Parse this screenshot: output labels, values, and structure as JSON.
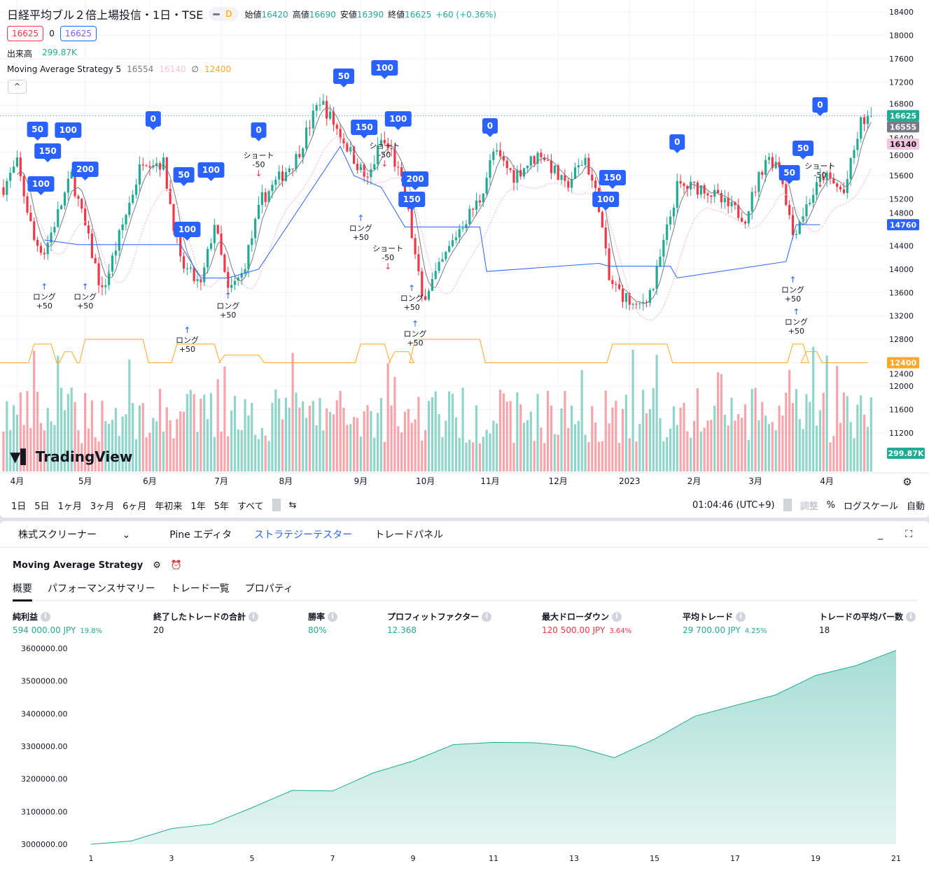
{
  "header": {
    "title": "日経平均ブル２倍上場投信・1日・TSE",
    "interval_badge": "D",
    "open_label": "始値",
    "open": "16420",
    "high_label": "高値",
    "high": "16690",
    "low_label": "安値",
    "low": "16390",
    "close_label": "終値",
    "close": "16625",
    "change": "+60 (+0.36%)",
    "sell_price": "16625",
    "spread": "0",
    "buy_price": "16625",
    "volume_label": "出来高",
    "volume_value": "299.87K",
    "indicator_name": "Moving Average Strategy 5",
    "ind_v1": "16554",
    "ind_v2": "16140",
    "ind_v3": "12400",
    "logo_text": "TradingView"
  },
  "colors": {
    "up": "#22ab94",
    "down": "#f23645",
    "accent": "#2962ff",
    "ma_fast": "#787b86",
    "ma_slow": "#f7c4dc",
    "position": "#ffa726"
  },
  "price_axis": {
    "ticks": [
      "18400",
      "18000",
      "17600",
      "17200",
      "16800",
      "16400",
      "16000",
      "15600",
      "15200",
      "14800",
      "14400",
      "14000",
      "13600",
      "13200",
      "12800",
      "12400",
      "12000",
      "11600",
      "11200"
    ],
    "badges": [
      {
        "text": "16625",
        "price": 16625,
        "color": "#22ab94"
      },
      {
        "text": "16555",
        "price": 16555,
        "color": "#787b86"
      },
      {
        "text": "16140",
        "price": 16140,
        "color": "#f7c4dc"
      },
      {
        "text": "14760",
        "price": 14760,
        "color": "#2962ff"
      },
      {
        "text": "12400",
        "price": 12400,
        "color": "#ffa726"
      }
    ],
    "volume_badge": "299.87K"
  },
  "time_axis": [
    {
      "label": "4月",
      "bar": 4
    },
    {
      "label": "5月",
      "bar": 24
    },
    {
      "label": "6月",
      "bar": 43
    },
    {
      "label": "7月",
      "bar": 64
    },
    {
      "label": "8月",
      "bar": 83
    },
    {
      "label": "9月",
      "bar": 105
    },
    {
      "label": "10月",
      "bar": 124
    },
    {
      "label": "11月",
      "bar": 143
    },
    {
      "label": "12月",
      "bar": 163
    },
    {
      "label": "2023",
      "bar": 184
    },
    {
      "label": "2月",
      "bar": 203
    },
    {
      "label": "3月",
      "bar": 221
    },
    {
      "label": "4月",
      "bar": 242
    }
  ],
  "price_path": [
    [
      0,
      15400
    ],
    [
      4,
      15800
    ],
    [
      9,
      14500
    ],
    [
      12,
      14300
    ],
    [
      20,
      15600
    ],
    [
      29,
      13600
    ],
    [
      41,
      15900
    ],
    [
      47,
      15800
    ],
    [
      52,
      14100
    ],
    [
      58,
      13700
    ],
    [
      62,
      14800
    ],
    [
      66,
      13600
    ],
    [
      70,
      13900
    ],
    [
      76,
      15200
    ],
    [
      86,
      15900
    ],
    [
      93,
      16900
    ],
    [
      97,
      16500
    ],
    [
      103,
      15900
    ],
    [
      107,
      15500
    ],
    [
      111,
      16200
    ],
    [
      114,
      16000
    ],
    [
      118,
      15300
    ],
    [
      123,
      13500
    ],
    [
      128,
      14000
    ],
    [
      134,
      14700
    ],
    [
      140,
      15200
    ],
    [
      144,
      16000
    ],
    [
      150,
      15600
    ],
    [
      158,
      16000
    ],
    [
      165,
      15400
    ],
    [
      171,
      15900
    ],
    [
      175,
      15100
    ],
    [
      178,
      13800
    ],
    [
      183,
      13500
    ],
    [
      186,
      13300
    ],
    [
      191,
      13700
    ],
    [
      198,
      15400
    ],
    [
      206,
      15400
    ],
    [
      212,
      15100
    ],
    [
      218,
      14900
    ],
    [
      224,
      15900
    ],
    [
      228,
      15800
    ],
    [
      232,
      14600
    ],
    [
      237,
      15200
    ],
    [
      241,
      15600
    ],
    [
      247,
      15300
    ],
    [
      252,
      16500
    ],
    [
      255,
      16625
    ]
  ],
  "strategy_line": [
    [
      12,
      14500
    ],
    [
      22,
      14420
    ],
    [
      52,
      14420
    ],
    [
      58,
      13850
    ],
    [
      66,
      13850
    ],
    [
      75,
      14000
    ],
    [
      99,
      16100
    ],
    [
      103,
      15600
    ],
    [
      111,
      15400
    ],
    [
      118,
      14720
    ],
    [
      140,
      14720
    ],
    [
      142,
      13960
    ],
    [
      175,
      14100
    ],
    [
      178,
      14050
    ],
    [
      196,
      14050
    ],
    [
      198,
      13850
    ],
    [
      230,
      14130
    ],
    [
      233,
      14760
    ],
    [
      240,
      14760
    ]
  ],
  "position_line": {
    "base": 12400,
    "segments": [
      [
        9,
        14,
        12720
      ],
      [
        18,
        20,
        12590
      ],
      [
        24,
        41,
        12800
      ],
      [
        51,
        62,
        12720
      ],
      [
        65,
        75,
        12530
      ],
      [
        105,
        112,
        12720
      ],
      [
        115,
        119,
        12590
      ],
      [
        121,
        140,
        12800
      ],
      [
        179,
        195,
        12720
      ],
      [
        232,
        235,
        12720
      ],
      [
        236,
        239,
        12590
      ]
    ]
  },
  "markers": [
    {
      "bar": 100,
      "price": 17300,
      "text": "50",
      "type": "box"
    },
    {
      "bar": 112,
      "price": 17443,
      "text": "100",
      "type": "box"
    },
    {
      "bar": 44,
      "price": 16570,
      "text": "0",
      "type": "box"
    },
    {
      "bar": 75,
      "price": 16378,
      "text": "0",
      "type": "box"
    },
    {
      "bar": 13,
      "price": 16020,
      "text": "150",
      "type": "box"
    },
    {
      "bar": 19,
      "price": 15984,
      "text": "100",
      "type": "box"
    },
    {
      "bar": 10,
      "price": 15816,
      "text": "50",
      "type": "box"
    },
    {
      "bar": 24,
      "price": 15709,
      "text": "200",
      "type": "box"
    },
    {
      "bar": 11,
      "price": 15458,
      "text": "100",
      "type": "box"
    },
    {
      "bar": 53,
      "price": 15613,
      "text": "50",
      "type": "box"
    },
    {
      "bar": 61,
      "price": 15697,
      "text": "100",
      "type": "box"
    },
    {
      "bar": 54,
      "price": 14680,
      "text": "100",
      "type": "box"
    },
    {
      "bar": 106,
      "price": 16426,
      "text": "150",
      "type": "box"
    },
    {
      "bar": 116,
      "price": 16570,
      "text": "100",
      "type": "box"
    },
    {
      "bar": 120,
      "price": 15194,
      "text": "150",
      "type": "box"
    },
    {
      "bar": 121,
      "price": 15039,
      "text": "200",
      "type": "box"
    },
    {
      "bar": 143,
      "price": 16450,
      "text": "0",
      "type": "box"
    },
    {
      "bar": 177,
      "price": 15194,
      "text": "100",
      "type": "box"
    },
    {
      "bar": 179,
      "price": 15027,
      "text": "150",
      "type": "box"
    },
    {
      "bar": 198,
      "price": 16175,
      "text": "0",
      "type": "box"
    },
    {
      "bar": 240,
      "price": 16809,
      "text": "0",
      "type": "box"
    },
    {
      "bar": 235,
      "price": 16068,
      "text": "50",
      "type": "box"
    },
    {
      "bar": 231,
      "price": 15649,
      "text": "50",
      "type": "box"
    },
    {
      "bar": 12,
      "price": 13484,
      "text": "ロング",
      "sub": "+50",
      "type": "long"
    },
    {
      "bar": 24,
      "price": 13484,
      "text": "ロング",
      "sub": "+50",
      "type": "long"
    },
    {
      "bar": 66,
      "price": 13328,
      "text": "ロング",
      "sub": "+50",
      "type": "long"
    },
    {
      "bar": 54,
      "price": 12742,
      "text": "ロング",
      "sub": "+50",
      "type": "long"
    },
    {
      "bar": 121,
      "price": 12850,
      "text": "ロング",
      "sub": "+50",
      "type": "long"
    },
    {
      "bar": 232,
      "price": 13603,
      "text": "ロング",
      "sub": "+50",
      "type": "long"
    },
    {
      "bar": 120,
      "price": 13460,
      "text": "ロング",
      "sub": "+50",
      "type": "long"
    },
    {
      "bar": 233,
      "price": 14058,
      "text": "ロング",
      "sub": "+50",
      "type": "long"
    },
    {
      "bar": 105,
      "price": 14656,
      "text": "ロング",
      "sub": "+50",
      "type": "long"
    },
    {
      "bar": 75,
      "price": 15900,
      "text": "ショート",
      "sub": "-50",
      "type": "short"
    },
    {
      "bar": 112,
      "price": 16965,
      "text": "ショート",
      "sub": "-50",
      "type": "short"
    },
    {
      "bar": 240,
      "price": 16331,
      "text": "ショート",
      "sub": "-50",
      "type": "short"
    },
    {
      "bar": 113,
      "price": 16210,
      "text": "ショート",
      "sub": "-50",
      "type": "short"
    }
  ],
  "toolbar": {
    "ranges": [
      "1日",
      "5日",
      "1ヶ月",
      "3ヶ月",
      "6ヶ月",
      "年初来",
      "1年",
      "5年",
      "すべて"
    ],
    "time": "01:04:46 (UTC+9)",
    "adjust": "調整",
    "percent": "%",
    "log": "ログスケール",
    "auto": "自動"
  },
  "panel": {
    "tabs": [
      "株式スクリーナー",
      "Pine エディタ",
      "ストラテジーテスター",
      "トレードパネル"
    ],
    "active_tab": 2,
    "strategy_name": "Moving Average Strategy",
    "subtabs": [
      "概要",
      "パフォーマンスサマリー",
      "トレード一覧",
      "プロパティ"
    ],
    "stats": [
      {
        "label": "純利益",
        "value": "594 000.00 JPY",
        "pct": "19.8%",
        "color": "green"
      },
      {
        "label": "終了したトレードの合計",
        "value": "20",
        "color": "none"
      },
      {
        "label": "勝率",
        "value": "80%",
        "color": "green"
      },
      {
        "label": "プロフィットファクター",
        "value": "12.368",
        "color": "green"
      },
      {
        "label": "最大ドローダウン",
        "value": "120 500.00 JPY",
        "pct": "3.64%",
        "color": "red"
      },
      {
        "label": "平均トレード",
        "value": "29 700.00 JPY",
        "pct": "4.25%",
        "color": "green"
      },
      {
        "label": "トレードの平均バー数",
        "value": "18",
        "color": "none"
      }
    ]
  },
  "chart_data": {
    "type": "area",
    "x": [
      1,
      2,
      3,
      4,
      5,
      6,
      7,
      8,
      9,
      10,
      11,
      12,
      13,
      14,
      15,
      16,
      17,
      18,
      19,
      20,
      21
    ],
    "values": [
      3000000,
      3010000,
      3048000,
      3062000,
      3112000,
      3165000,
      3163000,
      3218000,
      3255000,
      3305000,
      3312000,
      3311000,
      3300000,
      3265000,
      3322000,
      3392000,
      3425000,
      3457000,
      3517000,
      3547000,
      3594000
    ],
    "ylim": [
      3000000,
      3600000
    ],
    "yticks": [
      "3600000.00",
      "3500000.00",
      "3400000.00",
      "3300000.00",
      "3200000.00",
      "3100000.00",
      "3000000.00"
    ],
    "xticks": [
      "1",
      "3",
      "5",
      "7",
      "9",
      "11",
      "13",
      "15",
      "17",
      "19",
      "21"
    ],
    "color": "#22ab94"
  }
}
